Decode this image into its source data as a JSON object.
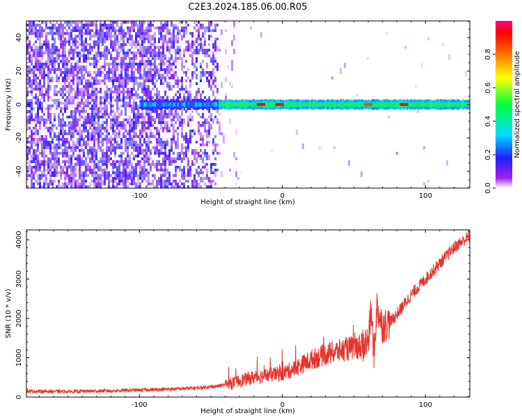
{
  "title": "C2E3.2024.185.06.00.R05",
  "chart_data": [
    {
      "type": "heatmap",
      "xlabel": "Height of straight line (km)",
      "ylabel": "Frequency (Hz)",
      "xlim": [
        -179,
        131
      ],
      "ylim": [
        -50,
        50
      ],
      "xticks": [
        -100,
        0,
        100
      ],
      "yticks": [
        -40,
        -20,
        0,
        20,
        40
      ],
      "colorbar": {
        "label": "Normalized spectral amplitude",
        "range": [
          0,
          1
        ],
        "ticks": [
          0.0,
          0.2,
          0.4,
          0.6,
          0.8
        ]
      },
      "signal_band": {
        "center_hz": 0,
        "x_start": -100,
        "strong_from": -45,
        "peaks": [
          {
            "x": -15,
            "amp": 0.95
          },
          {
            "x": -2,
            "amp": 0.95
          },
          {
            "x": 60,
            "amp": 0.85
          },
          {
            "x": 85,
            "amp": 0.95
          }
        ]
      }
    },
    {
      "type": "line",
      "xlabel": "Height of straight line (km)",
      "ylabel": "SNR (10 * v/v)",
      "xlim": [
        -179,
        131
      ],
      "ylim": [
        0,
        4250
      ],
      "xticks": [
        -100,
        0,
        100
      ],
      "yticks": [
        0,
        1000,
        2000,
        3000,
        4000
      ],
      "series": [
        {
          "color": "#e8322a",
          "x": [
            -179,
            -150,
            -120,
            -100,
            -80,
            -60,
            -45,
            -35,
            -30,
            -20,
            -10,
            0,
            10,
            20,
            30,
            40,
            50,
            55,
            60,
            62,
            64,
            66,
            70,
            75,
            80,
            90,
            100,
            110,
            120,
            131
          ],
          "y": [
            150,
            140,
            160,
            180,
            200,
            230,
            280,
            350,
            420,
            500,
            560,
            600,
            750,
            950,
            1080,
            1180,
            1260,
            1300,
            1400,
            2200,
            1100,
            2300,
            1800,
            1900,
            2100,
            2600,
            3000,
            3400,
            3800,
            4100
          ]
        }
      ]
    }
  ]
}
